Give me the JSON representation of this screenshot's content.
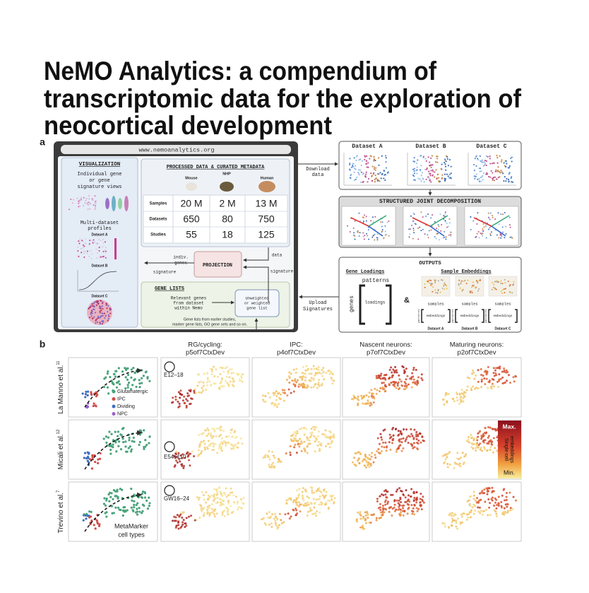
{
  "header": {
    "title_lines": [
      "NeMO Analytics: a compendium of",
      "transcriptomic data for the exploration of",
      "neocortical development"
    ]
  },
  "panel_a": {
    "label": "a",
    "url": "www.nemoanalytics.org",
    "visualization": {
      "title": "VISUALIZATION",
      "gene_views": [
        "Individual gene",
        "or gene",
        "signature views"
      ],
      "multi": [
        "Multi-dataset",
        "profiles"
      ],
      "datasets": [
        "Dataset A",
        "Dataset B",
        "Dataset C"
      ]
    },
    "processed": {
      "title": "PROCESSED DATA & CURATED METADATA",
      "species": [
        "Mouse",
        "NHP",
        "Human"
      ],
      "rows": [
        [
          "Samples",
          "20 M",
          "2 M",
          "13 M"
        ],
        [
          "Datasets",
          "650",
          "80",
          "750"
        ],
        [
          "Studies",
          "55",
          "18",
          "125"
        ]
      ]
    },
    "projection": "PROJECTION",
    "indiv_genes": [
      "indiv.",
      "genes"
    ],
    "signature_left": "signature",
    "data": "data",
    "signature_right": "signature",
    "download": [
      "Download",
      "data"
    ],
    "upload": [
      "Upload",
      "Signatures"
    ],
    "gene_lists": {
      "title": "GENE LISTS",
      "relevant": [
        "Relevant genes",
        "from dataset",
        "within Nemo"
      ],
      "list": [
        "Unweighted",
        "or weighted",
        "gene list"
      ],
      "note": [
        "Gene lists from earlier studies,",
        "marker gene lists, GO gene sets and so on."
      ]
    },
    "datasets": [
      "Dataset A",
      "Dataset B",
      "Dataset C"
    ],
    "decomposition": "STRUCTURED JOINT DECOMPOSITION",
    "outputs": {
      "title": "OUTPUTS",
      "gene_loadings": "Gene Loadings",
      "sample_embeddings": "Sample Embeddings",
      "patterns": "patterns",
      "genes": "genes",
      "loadings": "loadings",
      "amp": "&",
      "samples": [
        "samples",
        "samples",
        "samples"
      ],
      "patterns_small": [
        "patterns",
        "patterns",
        "patterns"
      ],
      "embeddings": [
        "embeddings",
        "embeddings",
        "embeddings"
      ],
      "datasets": [
        "Dataset A",
        "Dataset B",
        "Dataset C"
      ]
    }
  },
  "panel_b": {
    "label": "b",
    "columns": [
      [
        "RG/cycling:",
        "p5of7CtxDev"
      ],
      [
        "IPC:",
        "p4of7CtxDev"
      ],
      [
        "Nascent neurons:",
        "p7of7CtxDev"
      ],
      [
        "Maturing neurons:",
        "p2of7CtxDev"
      ]
    ],
    "rows": [
      {
        "name": "La Manno et al.",
        "ref": "11",
        "age": "E12–18"
      },
      {
        "name": "Micali et al.",
        "ref": "12",
        "age": "E54–110"
      },
      {
        "name": "Trevino et al.",
        "ref": "7",
        "age": "GW16–24"
      }
    ],
    "legend": [
      "Glutamatergic",
      "IPC",
      "Dividing",
      "NPC"
    ],
    "cell_types": [
      "MetaMarker",
      "cell types"
    ],
    "scale": {
      "max": "Max.",
      "label": [
        "Single-cell",
        "embeddings"
      ],
      "min": "Min."
    }
  }
}
